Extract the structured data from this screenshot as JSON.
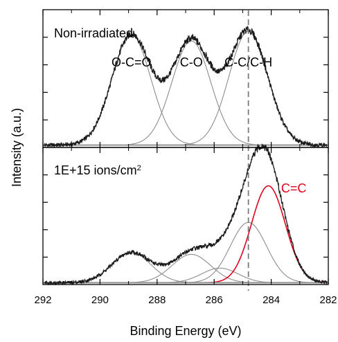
{
  "chart_data": {
    "type": "line",
    "xlabel": "Binding Energy (eV)",
    "ylabel": "Intensity (a.u.)",
    "x_reversed": true,
    "xlim": [
      292,
      282
    ],
    "xticks": [
      292,
      290,
      288,
      286,
      284,
      282
    ],
    "y_tick_labels": false,
    "reference_line": {
      "x": 284.8,
      "style": "dashed",
      "color": "#7a7a7a"
    },
    "colors": {
      "data": "#1a1a1a",
      "fit": "#8c8c8c",
      "highlight": "#e0001b",
      "axis": "#000000"
    },
    "panels": [
      {
        "label": "Non-irradiated",
        "ylim": [
          0,
          1.15
        ],
        "baseline": 0.02,
        "peak_labels": [
          {
            "text": "O-C=O",
            "x": 288.9
          },
          {
            "text": "C-O",
            "x": 286.8
          },
          {
            "text": "C-C/C-H",
            "x": 284.8
          }
        ],
        "components": [
          {
            "center": 288.9,
            "height": 0.92,
            "fwhm": 1.6,
            "color": "fit"
          },
          {
            "center": 286.8,
            "height": 0.87,
            "fwhm": 1.6,
            "color": "fit"
          },
          {
            "center": 284.8,
            "height": 0.95,
            "fwhm": 1.6,
            "color": "fit"
          }
        ]
      },
      {
        "label": "1E+15 ions/cm",
        "label_superscript": "2",
        "ylim": [
          0,
          1.5
        ],
        "baseline": 0.02,
        "peak_labels": [
          {
            "text": "C=C",
            "x": 283.8,
            "color": "highlight"
          }
        ],
        "components": [
          {
            "center": 288.9,
            "height": 0.33,
            "fwhm": 1.6,
            "color": "fit"
          },
          {
            "center": 286.8,
            "height": 0.31,
            "fwhm": 1.6,
            "color": "fit"
          },
          {
            "center": 285.8,
            "height": 0.16,
            "fwhm": 1.5,
            "color": "fit"
          },
          {
            "center": 284.8,
            "height": 0.66,
            "fwhm": 1.5,
            "color": "fit"
          },
          {
            "center": 284.1,
            "height": 1.06,
            "fwhm": 1.4,
            "color": "highlight"
          }
        ]
      }
    ]
  }
}
